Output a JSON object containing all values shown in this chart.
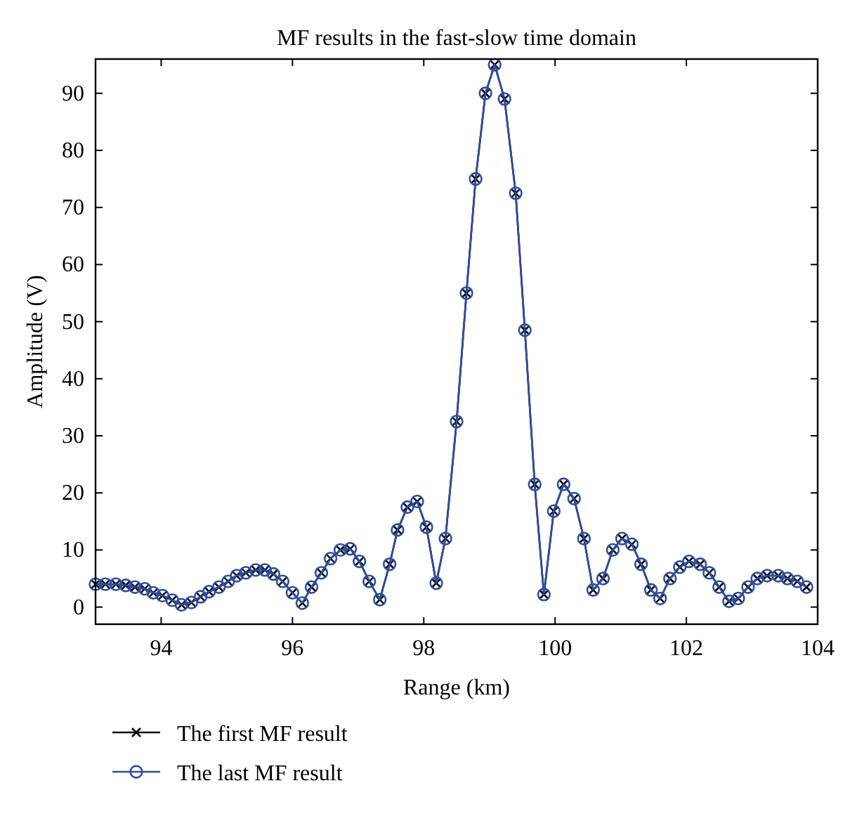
{
  "chart_data": {
    "type": "line",
    "title": "MF results in the fast-slow time domain",
    "xlabel": "Range (km)",
    "ylabel": "Amplitude (V)",
    "x": [
      93.0,
      93.15,
      93.31,
      93.46,
      93.6,
      93.75,
      93.88,
      94.02,
      94.17,
      94.31,
      94.46,
      94.6,
      94.73,
      94.88,
      95.02,
      95.15,
      95.29,
      95.44,
      95.58,
      95.71,
      95.85,
      96.0,
      96.15,
      96.29,
      96.44,
      96.58,
      96.73,
      96.88,
      97.02,
      97.17,
      97.33,
      97.48,
      97.6,
      97.75,
      97.9,
      98.04,
      98.19,
      98.33,
      98.5,
      98.65,
      98.79,
      98.94,
      99.08,
      99.23,
      99.4,
      99.54,
      99.69,
      99.83,
      99.98,
      100.13,
      100.29,
      100.44,
      100.58,
      100.73,
      100.88,
      101.02,
      101.17,
      101.31,
      101.46,
      101.6,
      101.75,
      101.9,
      102.04,
      102.21,
      102.35,
      102.5,
      102.65,
      102.79,
      102.94,
      103.08,
      103.23,
      103.4,
      103.54,
      103.69,
      103.83
    ],
    "series": [
      {
        "name": "The first MF result",
        "color": "#000000",
        "marker": "cross",
        "values": [
          4,
          4,
          4,
          3.8,
          3.5,
          3.2,
          2.5,
          2,
          1.2,
          0.4,
          0.8,
          1.8,
          2.7,
          3.5,
          4.5,
          5.5,
          6,
          6.5,
          6.5,
          5.8,
          4.5,
          2.5,
          0.7,
          3.5,
          6,
          8.5,
          10,
          10.2,
          8,
          4.5,
          1.3,
          7.5,
          13.5,
          17.5,
          18.5,
          14,
          4.2,
          12,
          32.5,
          55,
          75,
          90,
          95,
          89,
          72.5,
          48.5,
          21.5,
          2.2,
          16.8,
          21.5,
          19,
          12,
          3,
          5,
          10,
          12,
          11,
          7.5,
          3,
          1.5,
          5,
          7,
          8,
          7.5,
          6,
          3.5,
          1,
          1.5,
          3.5,
          5,
          5.5,
          5.5,
          5,
          4.5,
          3.5
        ]
      },
      {
        "name": "The last MF result",
        "color": "#2e4ea0",
        "marker": "circle",
        "values": [
          4,
          4,
          4,
          3.8,
          3.5,
          3.2,
          2.5,
          2,
          1.2,
          0.4,
          0.8,
          1.8,
          2.7,
          3.5,
          4.5,
          5.5,
          6,
          6.5,
          6.5,
          5.8,
          4.5,
          2.5,
          0.7,
          3.5,
          6,
          8.5,
          10,
          10.2,
          8,
          4.5,
          1.3,
          7.5,
          13.5,
          17.5,
          18.5,
          14,
          4.2,
          12,
          32.5,
          55,
          75,
          90,
          95,
          89,
          72.5,
          48.5,
          21.5,
          2.2,
          16.8,
          21.5,
          19,
          12,
          3,
          5,
          10,
          12,
          11,
          7.5,
          3,
          1.5,
          5,
          7,
          8,
          7.5,
          6,
          3.5,
          1,
          1.5,
          3.5,
          5,
          5.5,
          5.5,
          5,
          4.5,
          3.5
        ]
      }
    ],
    "xlim": [
      93,
      104
    ],
    "xticks": [
      94,
      96,
      98,
      100,
      102,
      104
    ],
    "ylim": [
      -3,
      96
    ],
    "yticks": [
      0,
      10,
      20,
      30,
      40,
      50,
      60,
      70,
      80,
      90
    ],
    "grid": false,
    "legend": "bottom left",
    "line_style": "solid"
  }
}
